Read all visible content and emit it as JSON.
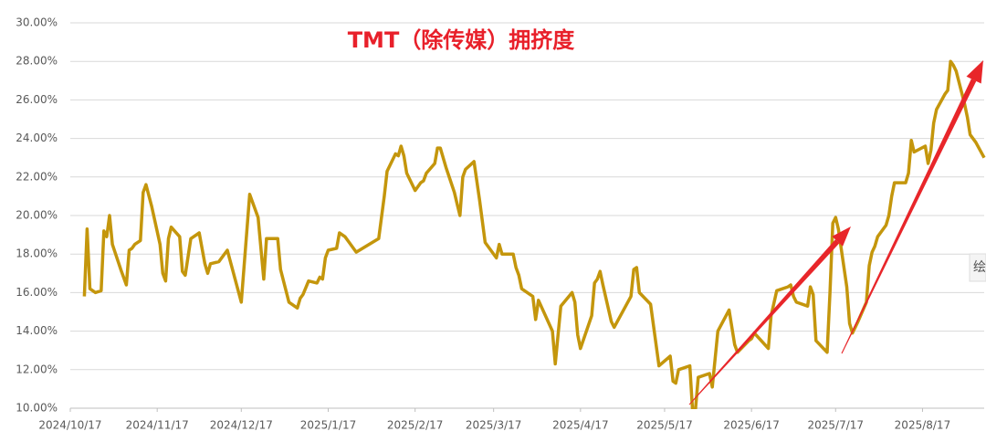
{
  "chart_data": {
    "type": "line",
    "title": "TMT（除传媒）拥挤度",
    "side_tab": "绘",
    "x": [
      "2024/10/22",
      "2024/10/23",
      "2024/10/24",
      "2024/10/26",
      "2024/10/28",
      "2024/10/29",
      "2024/10/30",
      "2024/10/31",
      "2024/11/1",
      "2024/11/4",
      "2024/11/6",
      "2024/11/7",
      "2024/11/8",
      "2024/11/9",
      "2024/11/11",
      "2024/11/12",
      "2024/11/13",
      "2024/11/15",
      "2024/11/18",
      "2024/11/19",
      "2024/11/20",
      "2024/11/21",
      "2024/11/22",
      "2024/11/25",
      "2024/11/26",
      "2024/11/27",
      "2024/11/29",
      "2024/12/2",
      "2024/12/4",
      "2024/12/5",
      "2024/12/6",
      "2024/12/9",
      "2024/12/12",
      "2024/12/17",
      "2024/12/20",
      "2024/12/23",
      "2024/12/25",
      "2024/12/26",
      "2024/12/30",
      "2024/12/31",
      "2025/1/3",
      "2025/1/6",
      "2025/1/7",
      "2025/1/8",
      "2025/1/10",
      "2025/1/13",
      "2025/1/14",
      "2025/1/15",
      "2025/1/16",
      "2025/1/17",
      "2025/1/20",
      "2025/1/21",
      "2025/1/23",
      "2025/1/27",
      "2025/2/4",
      "2025/2/6",
      "2025/2/7",
      "2025/2/10",
      "2025/2/11",
      "2025/2/12",
      "2025/2/13",
      "2025/2/14",
      "2025/2/17",
      "2025/2/19",
      "2025/2/20",
      "2025/2/21",
      "2025/2/24",
      "2025/2/25",
      "2025/2/26",
      "2025/2/28",
      "2025/3/3",
      "2025/3/4",
      "2025/3/5",
      "2025/3/6",
      "2025/3/7",
      "2025/3/10",
      "2025/3/12",
      "2025/3/14",
      "2025/3/18",
      "2025/3/19",
      "2025/3/20",
      "2025/3/24",
      "2025/3/25",
      "2025/3/26",
      "2025/3/27",
      "2025/3/31",
      "2025/4/1",
      "2025/4/2",
      "2025/4/7",
      "2025/4/8",
      "2025/4/10",
      "2025/4/14",
      "2025/4/15",
      "2025/4/16",
      "2025/4/17",
      "2025/4/21",
      "2025/4/22",
      "2025/4/23",
      "2025/4/24",
      "2025/4/25",
      "2025/4/28",
      "2025/4/29",
      "2025/5/5",
      "2025/5/6",
      "2025/5/7",
      "2025/5/8",
      "2025/5/12",
      "2025/5/15",
      "2025/5/19",
      "2025/5/20",
      "2025/5/21",
      "2025/5/22",
      "2025/5/26",
      "2025/5/27",
      "2025/5/28",
      "2025/5/29",
      "2025/6/2",
      "2025/6/3",
      "2025/6/5",
      "2025/6/9",
      "2025/6/11",
      "2025/6/12",
      "2025/6/16",
      "2025/6/17",
      "2025/6/18",
      "2025/6/23",
      "2025/6/24",
      "2025/6/26",
      "2025/6/30",
      "2025/7/1",
      "2025/7/2",
      "2025/7/3",
      "2025/7/7",
      "2025/7/8",
      "2025/7/9",
      "2025/7/10",
      "2025/7/14",
      "2025/7/15",
      "2025/7/16",
      "2025/7/17",
      "2025/7/18",
      "2025/7/21",
      "2025/7/22",
      "2025/7/23",
      "2025/7/25",
      "2025/7/28",
      "2025/7/29",
      "2025/7/30",
      "2025/7/31",
      "2025/8/1",
      "2025/8/4",
      "2025/8/5",
      "2025/8/6",
      "2025/8/7",
      "2025/8/11",
      "2025/8/12",
      "2025/8/13",
      "2025/8/14",
      "2025/8/18",
      "2025/8/19",
      "2025/8/20",
      "2025/8/21",
      "2025/8/22",
      "2025/8/25",
      "2025/8/26",
      "2025/8/27",
      "2025/8/28",
      "2025/8/29",
      "2025/9/1",
      "2025/9/2",
      "2025/9/3",
      "2025/9/5",
      "2025/9/8"
    ],
    "series": [
      {
        "color": "#c4960c",
        "values": [
          15.8,
          19.3,
          16.2,
          16.0,
          16.1,
          19.2,
          18.9,
          20.0,
          18.5,
          17.2,
          16.4,
          18.2,
          18.3,
          18.5,
          18.7,
          21.2,
          21.6,
          20.5,
          18.5,
          17.0,
          16.6,
          18.8,
          19.4,
          18.9,
          17.1,
          16.9,
          18.8,
          19.1,
          17.5,
          17.0,
          17.5,
          17.6,
          18.2,
          15.5,
          21.1,
          19.9,
          16.7,
          18.8,
          18.8,
          17.2,
          15.5,
          15.2,
          15.7,
          15.9,
          16.6,
          16.5,
          16.8,
          16.7,
          17.8,
          18.2,
          18.3,
          19.1,
          18.9,
          18.1,
          18.8,
          21.0,
          22.3,
          23.2,
          23.1,
          23.6,
          23.1,
          22.2,
          21.3,
          21.7,
          21.8,
          22.2,
          22.7,
          23.5,
          23.5,
          22.5,
          21.2,
          20.6,
          20.0,
          22.0,
          22.4,
          22.8,
          20.8,
          18.6,
          17.8,
          18.5,
          18.0,
          18.0,
          17.3,
          16.9,
          16.2,
          15.8,
          14.6,
          15.6,
          14.0,
          12.3,
          15.3,
          16.0,
          15.5,
          13.8,
          13.1,
          14.8,
          16.5,
          16.7,
          17.1,
          16.4,
          14.5,
          14.2,
          15.8,
          17.2,
          17.3,
          16.0,
          15.4,
          12.2,
          12.7,
          11.4,
          11.3,
          12.0,
          12.2,
          9.8,
          9.9,
          11.6,
          11.8,
          11.1,
          14.0,
          15.1,
          13.3,
          12.9,
          13.5,
          13.6,
          13.9,
          13.1,
          14.8,
          16.1,
          16.3,
          16.4,
          15.8,
          15.5,
          15.3,
          16.3,
          15.9,
          13.5,
          12.9,
          16.0,
          19.6,
          19.9,
          19.3,
          16.3,
          14.4,
          13.9,
          14.5,
          15.5,
          17.4,
          18.1,
          18.4,
          18.9,
          19.5,
          20.0,
          21.0,
          21.7,
          21.7,
          22.2,
          23.9,
          23.3,
          23.6,
          22.7,
          23.4,
          24.8,
          25.5,
          26.3,
          26.5,
          28.0,
          27.8,
          27.5,
          25.8,
          25.1,
          24.2,
          23.8,
          23.0
        ]
      }
    ],
    "xlim": [
      "2024/10/17",
      "2025/9/8"
    ],
    "xticks": [
      "2024/10/17",
      "2024/11/17",
      "2024/12/17",
      "2025/1/17",
      "2025/2/17",
      "2025/3/17",
      "2025/4/17",
      "2025/5/17",
      "2025/6/17",
      "2025/7/17",
      "2025/8/17"
    ],
    "ylim": [
      10,
      30
    ],
    "yticks": [
      {
        "value": 10,
        "label": "10.00%"
      },
      {
        "value": 12,
        "label": "12.00%"
      },
      {
        "value": 14,
        "label": "14.00%"
      },
      {
        "value": 16,
        "label": "16.00%"
      },
      {
        "value": 18,
        "label": "18.00%"
      },
      {
        "value": 20,
        "label": "20.00%"
      },
      {
        "value": 22,
        "label": "22.00%"
      },
      {
        "value": 24,
        "label": "24.00%"
      },
      {
        "value": 26,
        "label": "26.00%"
      },
      {
        "value": 28,
        "label": "28.00%"
      },
      {
        "value": 30,
        "label": "30.00%"
      }
    ],
    "grid": true
  }
}
